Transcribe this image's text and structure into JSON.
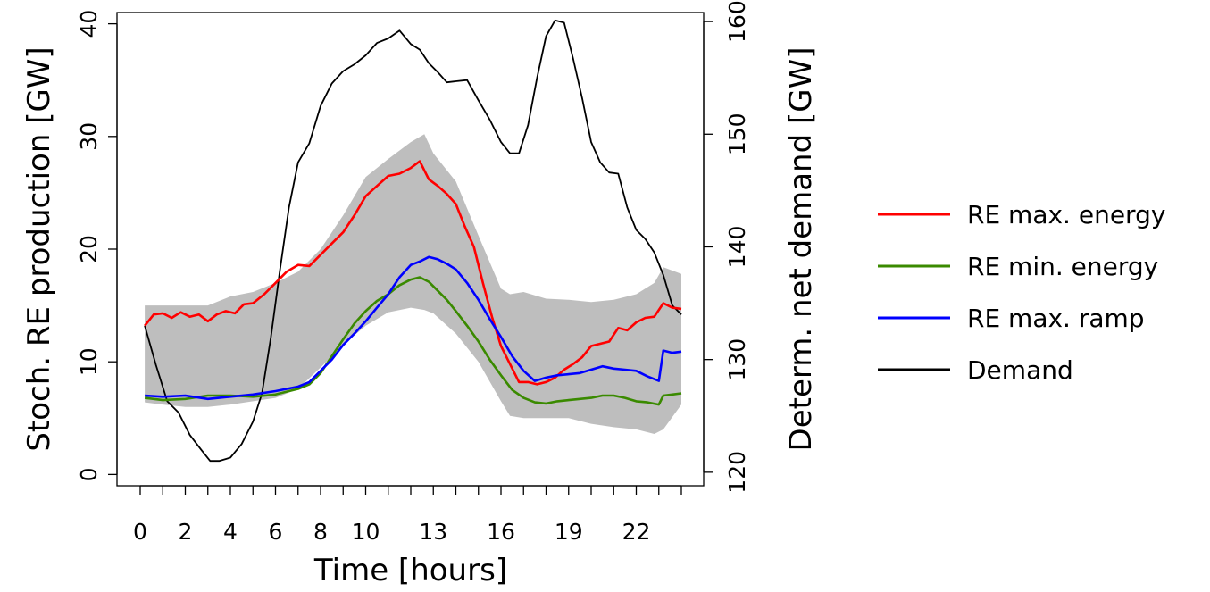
{
  "chart_data": {
    "type": "line",
    "xlabel": "Time [hours]",
    "ylabel_left": "Stoch. RE production [GW]",
    "ylabel_right": "Determ. net demand [GW]",
    "x_ticks": [
      0,
      1,
      2,
      3,
      4,
      5,
      6,
      7,
      8,
      9,
      10,
      11,
      12,
      13,
      14,
      15,
      16,
      17,
      18,
      19,
      20,
      21,
      22,
      23,
      24
    ],
    "x_tick_labels": [
      "0",
      "",
      "2",
      "",
      "4",
      "",
      "6",
      "",
      "8",
      "",
      "10",
      "",
      "",
      "13",
      "",
      "",
      "16",
      "",
      "",
      "19",
      "",
      "",
      "22",
      "",
      ""
    ],
    "y_left_range": [
      -1,
      41
    ],
    "y_left_ticks": [
      "0",
      "10",
      "20",
      "30",
      "40"
    ],
    "y_right_range": [
      118.8,
      160.8
    ],
    "y_right_ticks": [
      "120",
      "130",
      "140",
      "150",
      "160"
    ],
    "grid": false,
    "legend_position": "right",
    "band": {
      "x": [
        0.2,
        1,
        2,
        3,
        4,
        5,
        6,
        7,
        8,
        9,
        10,
        11,
        12,
        12.6,
        13,
        14,
        15,
        16,
        16.4,
        17,
        18,
        19,
        20,
        21,
        22,
        22.8,
        23.2,
        24
      ],
      "upper": [
        15,
        15,
        15,
        15,
        15.8,
        16.2,
        17,
        18,
        20,
        23,
        26.4,
        28,
        29.5,
        30.2,
        28.5,
        26,
        21.2,
        16.5,
        16,
        16.2,
        15.6,
        15.5,
        15.3,
        15.5,
        16,
        17,
        18.4,
        17.8
      ],
      "lower": [
        6.4,
        6.2,
        6,
        6,
        6.2,
        6.5,
        6.8,
        7.6,
        9.5,
        11.5,
        13.2,
        14.4,
        14.8,
        14.6,
        14.3,
        12.5,
        10,
        6.5,
        5.2,
        5,
        5,
        5,
        4.5,
        4.2,
        4,
        3.6,
        4,
        6.2
      ]
    },
    "series": [
      {
        "name": "RE max. energy",
        "color": "#ff0000",
        "axis": "left",
        "x": [
          0.2,
          0.6,
          1.0,
          1.4,
          1.8,
          2.2,
          2.6,
          3.0,
          3.4,
          3.8,
          4.2,
          4.6,
          5.0,
          5.5,
          6.0,
          6.5,
          7.0,
          7.5,
          8.0,
          8.5,
          9.0,
          9.5,
          10.0,
          10.5,
          11.0,
          11.5,
          12.0,
          12.4,
          12.8,
          13.2,
          13.6,
          14.0,
          14.4,
          14.8,
          15.2,
          15.6,
          16.0,
          16.4,
          16.8,
          17.2,
          17.6,
          18.0,
          18.4,
          18.8,
          19.2,
          19.6,
          20.0,
          20.4,
          20.8,
          21.2,
          21.6,
          22.0,
          22.4,
          22.8,
          23.2,
          23.6,
          24.0
        ],
        "values": [
          13.2,
          14.2,
          14.3,
          13.9,
          14.4,
          14.0,
          14.2,
          13.6,
          14.2,
          14.5,
          14.3,
          15.1,
          15.2,
          16.0,
          17.0,
          18.0,
          18.6,
          18.5,
          19.5,
          20.5,
          21.5,
          23.0,
          24.7,
          25.6,
          26.5,
          26.7,
          27.2,
          27.8,
          26.2,
          25.6,
          24.9,
          24.0,
          22.0,
          20.2,
          17.0,
          14.0,
          11.4,
          9.8,
          8.2,
          8.2,
          8.0,
          8.2,
          8.6,
          9.3,
          9.8,
          10.4,
          11.4,
          11.6,
          11.8,
          13.0,
          12.8,
          13.5,
          13.9,
          14.0,
          15.2,
          14.8,
          14.7
        ]
      },
      {
        "name": "RE min. energy",
        "color": "#3a8a00",
        "axis": "left",
        "x": [
          0.2,
          1.0,
          2.0,
          3.0,
          4.0,
          5.0,
          6.0,
          7.0,
          7.5,
          8.0,
          8.5,
          9.0,
          9.5,
          10.0,
          10.5,
          11.0,
          11.5,
          12.0,
          12.4,
          12.8,
          13.2,
          13.6,
          14.0,
          14.5,
          15.0,
          15.5,
          16.0,
          16.5,
          17.0,
          17.5,
          18.0,
          18.5,
          19.0,
          19.5,
          20.0,
          20.5,
          21.0,
          21.5,
          22.0,
          22.5,
          23.0,
          23.2,
          23.6,
          24.0
        ],
        "values": [
          6.8,
          6.6,
          6.7,
          7.0,
          7.0,
          6.9,
          7.1,
          7.6,
          8.0,
          9.0,
          10.5,
          12.0,
          13.4,
          14.5,
          15.4,
          16.0,
          16.8,
          17.3,
          17.5,
          17.1,
          16.3,
          15.5,
          14.5,
          13.2,
          11.8,
          10.2,
          8.8,
          7.5,
          6.8,
          6.4,
          6.3,
          6.5,
          6.6,
          6.7,
          6.8,
          7.0,
          7.0,
          6.8,
          6.5,
          6.4,
          6.2,
          7.0,
          7.1,
          7.2
        ]
      },
      {
        "name": "RE max. ramp",
        "color": "#0000ff",
        "axis": "left",
        "x": [
          0.2,
          1.0,
          2.0,
          3.0,
          4.0,
          5.0,
          6.0,
          7.0,
          7.5,
          8.0,
          8.5,
          9.0,
          9.5,
          10.0,
          10.5,
          11.0,
          11.5,
          12.0,
          12.4,
          12.8,
          13.2,
          13.6,
          14.0,
          14.5,
          15.0,
          15.5,
          16.0,
          16.5,
          17.0,
          17.5,
          18.0,
          18.5,
          19.0,
          19.5,
          20.0,
          20.5,
          21.0,
          21.5,
          22.0,
          22.5,
          23.0,
          23.2,
          23.6,
          24.0
        ],
        "values": [
          7.0,
          6.9,
          7.0,
          6.7,
          6.9,
          7.1,
          7.4,
          7.8,
          8.2,
          9.2,
          10.2,
          11.5,
          12.5,
          13.6,
          14.8,
          16.0,
          17.5,
          18.6,
          18.9,
          19.3,
          19.1,
          18.7,
          18.2,
          17.0,
          15.5,
          13.8,
          12.2,
          10.5,
          9.2,
          8.3,
          8.6,
          8.8,
          8.9,
          9.0,
          9.3,
          9.6,
          9.4,
          9.3,
          9.2,
          8.7,
          8.3,
          11.0,
          10.8,
          10.9
        ]
      },
      {
        "name": "Demand",
        "color": "#000000",
        "axis": "right",
        "x": [
          0.2,
          0.7,
          1.2,
          1.7,
          2.2,
          2.7,
          3.1,
          3.5,
          4.0,
          4.5,
          5.0,
          5.4,
          5.8,
          6.2,
          6.6,
          7.0,
          7.5,
          8.0,
          8.5,
          9.0,
          9.5,
          10.0,
          10.5,
          11.0,
          11.5,
          12.0,
          12.4,
          12.8,
          13.2,
          13.6,
          14.0,
          14.5,
          15.0,
          15.5,
          16.0,
          16.4,
          16.8,
          17.2,
          17.6,
          18.0,
          18.4,
          18.8,
          19.2,
          19.6,
          20.0,
          20.4,
          20.8,
          21.2,
          21.6,
          22.0,
          22.4,
          22.8,
          23.2,
          23.6,
          24.0
        ],
        "values": [
          133.0,
          129.5,
          126.3,
          125.3,
          123.3,
          122.0,
          121.0,
          121.0,
          121.3,
          122.5,
          124.5,
          127.0,
          132.0,
          138.0,
          143.5,
          147.5,
          149.2,
          152.5,
          154.5,
          155.6,
          156.2,
          157.0,
          158.1,
          158.5,
          159.2,
          158.0,
          157.5,
          156.3,
          155.5,
          154.6,
          154.7,
          154.8,
          153.0,
          151.3,
          149.3,
          148.3,
          148.3,
          150.8,
          155.0,
          158.7,
          160.1,
          159.9,
          156.7,
          153.2,
          149.3,
          147.5,
          146.6,
          146.5,
          143.5,
          141.5,
          140.7,
          139.5,
          137.5,
          134.8,
          134.0
        ]
      }
    ]
  }
}
